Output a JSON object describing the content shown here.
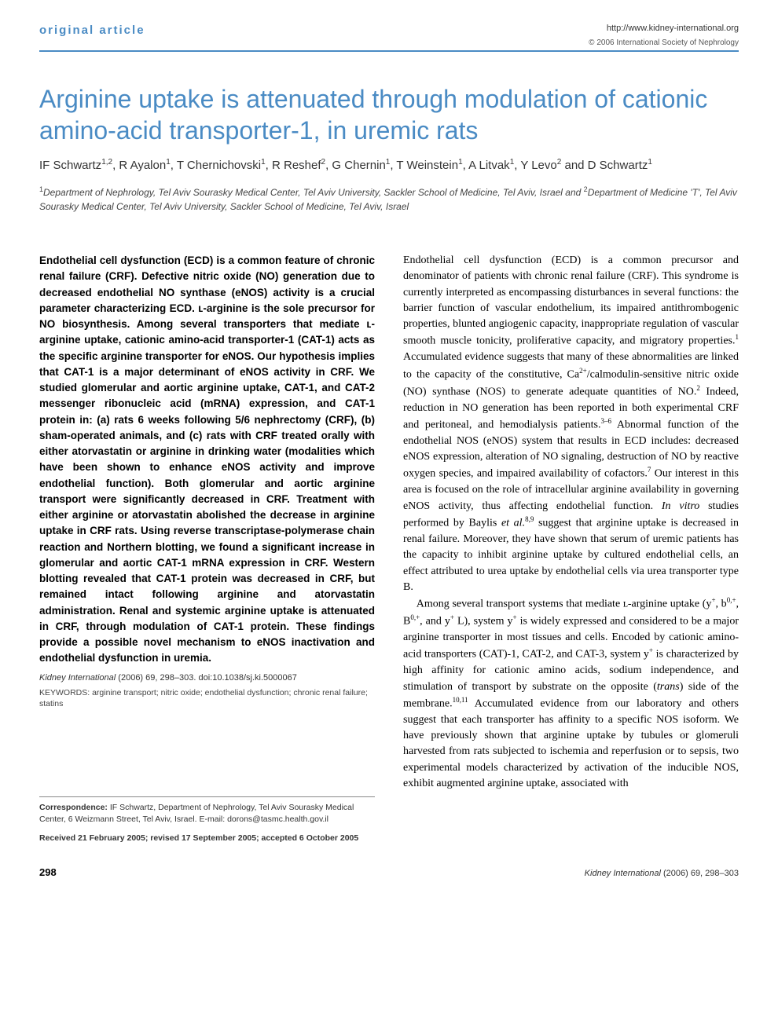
{
  "header": {
    "section_label": "original article",
    "journal_url": "http://www.kidney-international.org",
    "copyright": "© 2006 International Society of Nephrology"
  },
  "article": {
    "title": "Arginine uptake is attenuated through modulation of cationic amino-acid transporter-1, in uremic rats",
    "authors_html": "IF Schwartz<sup>1,2</sup>, R Ayalon<sup>1</sup>, T Chernichovski<sup>1</sup>, R Reshef<sup>2</sup>, G Chernin<sup>1</sup>, T Weinstein<sup>1</sup>, A Litvak<sup>1</sup>, Y Levo<sup>2</sup> and D Schwartz<sup>1</sup>",
    "affiliations_html": "<sup>1</sup>Department of Nephrology, Tel Aviv Sourasky Medical Center, Tel Aviv University, Sackler School of Medicine, Tel Aviv, Israel and <sup>2</sup>Department of Medicine 'T', Tel Aviv Sourasky Medical Center, Tel Aviv University, Sackler School of Medicine, Tel Aviv, Israel"
  },
  "abstract": "Endothelial cell dysfunction (ECD) is a common feature of chronic renal failure (CRF). Defective nitric oxide (NO) generation due to decreased endothelial NO synthase (eNOS) activity is a crucial parameter characterizing ECD. ʟ-arginine is the sole precursor for NO biosynthesis. Among several transporters that mediate ʟ-arginine uptake, cationic amino-acid transporter-1 (CAT-1) acts as the specific arginine transporter for eNOS. Our hypothesis implies that CAT-1 is a major determinant of eNOS activity in CRF. We studied glomerular and aortic arginine uptake, CAT-1, and CAT-2 messenger ribonucleic acid (mRNA) expression, and CAT-1 protein in: (a) rats 6 weeks following 5/6 nephrectomy (CRF), (b) sham-operated animals, and (c) rats with CRF treated orally with either atorvastatin or arginine in drinking water (modalities which have been shown to enhance eNOS activity and improve endothelial function). Both glomerular and aortic arginine transport were significantly decreased in CRF. Treatment with either arginine or atorvastatin abolished the decrease in arginine uptake in CRF rats. Using reverse transcriptase-polymerase chain reaction and Northern blotting, we found a significant increase in glomerular and aortic CAT-1 mRNA expression in CRF. Western blotting revealed that CAT-1 protein was decreased in CRF, but remained intact following arginine and atorvastatin administration. Renal and systemic arginine uptake is attenuated in CRF, through modulation of CAT-1 protein. These findings provide a possible novel mechanism to eNOS inactivation and endothelial dysfunction in uremia.",
  "citation": {
    "journal": "Kidney International",
    "year_vol": "(2006) 69,",
    "pages": "298–303.",
    "doi": "doi:10.1038/sj.ki.5000067"
  },
  "keywords": "KEYWORDS: arginine transport; nitric oxide; endothelial dysfunction; chronic renal failure; statins",
  "body": {
    "p1_html": "Endothelial cell dysfunction (ECD) is a common precursor and denominator of patients with chronic renal failure (CRF). This syndrome is currently interpreted as encompassing disturbances in several functions: the barrier function of vascular endothelium, its impaired antithrombogenic properties, blunted angiogenic capacity, inappropriate regulation of vascular smooth muscle tonicity, proliferative capacity, and migratory properties.<sup>1</sup> Accumulated evidence suggests that many of these abnormalities are linked to the capacity of the constitutive, Ca<sup>2+</sup>/calmodulin-sensitive nitric oxide (NO) synthase (NOS) to generate adequate quantities of NO.<sup>2</sup> Indeed, reduction in NO generation has been reported in both experimental CRF and peritoneal, and hemodialysis patients.<sup>3–6</sup> Abnormal function of the endothelial NOS (eNOS) system that results in ECD includes: decreased eNOS expression, alteration of NO signaling, destruction of NO by reactive oxygen species, and impaired availability of cofactors.<sup>7</sup> Our interest in this area is focused on the role of intracellular arginine availability in governing eNOS activity, thus affecting endothelial function. <i>In vitro</i> studies performed by Baylis <i>et al.</i><sup>8,9</sup> suggest that arginine uptake is decreased in renal failure. Moreover, they have shown that serum of uremic patients has the capacity to inhibit arginine uptake by cultured endothelial cells, an effect attributed to urea uptake by endothelial cells via urea transporter type B.",
    "p2_html": "Among several transport systems that mediate ʟ-arginine uptake (y<sup>+</sup>, b<sup>0,+</sup>, B<sup>0,+</sup>, and y<sup>+</sup> L), system y<sup>+</sup> is widely expressed and considered to be a major arginine transporter in most tissues and cells. Encoded by cationic amino-acid transporters (CAT)-1, CAT-2, and CAT-3, system y<sup>+</sup> is characterized by high affinity for cationic amino acids, sodium independence, and stimulation of transport by substrate on the opposite (<i>trans</i>) side of the membrane.<sup>10,11</sup> Accumulated evidence from our laboratory and others suggest that each transporter has affinity to a specific NOS isoform. We have previously shown that arginine uptake by tubules or glomeruli harvested from rats subjected to ischemia and reperfusion or to sepsis, two experimental models characterized by activation of the inducible NOS, exhibit augmented arginine uptake, associated with"
  },
  "correspondence": {
    "label": "Correspondence:",
    "text": "IF Schwartz, Department of Nephrology, Tel Aviv Sourasky Medical Center, 6 Weizmann Street, Tel Aviv, Israel. E-mail: dorons@tasmc.health.gov.il"
  },
  "dates": "Received 21 February 2005; revised 17 September 2005; accepted 6 October 2005",
  "footer": {
    "page_number": "298",
    "journal": "Kidney International",
    "citation_tail": "(2006) 69, 298–303"
  },
  "colors": {
    "accent": "#4a8bc4",
    "text": "#000000",
    "muted": "#444444"
  }
}
